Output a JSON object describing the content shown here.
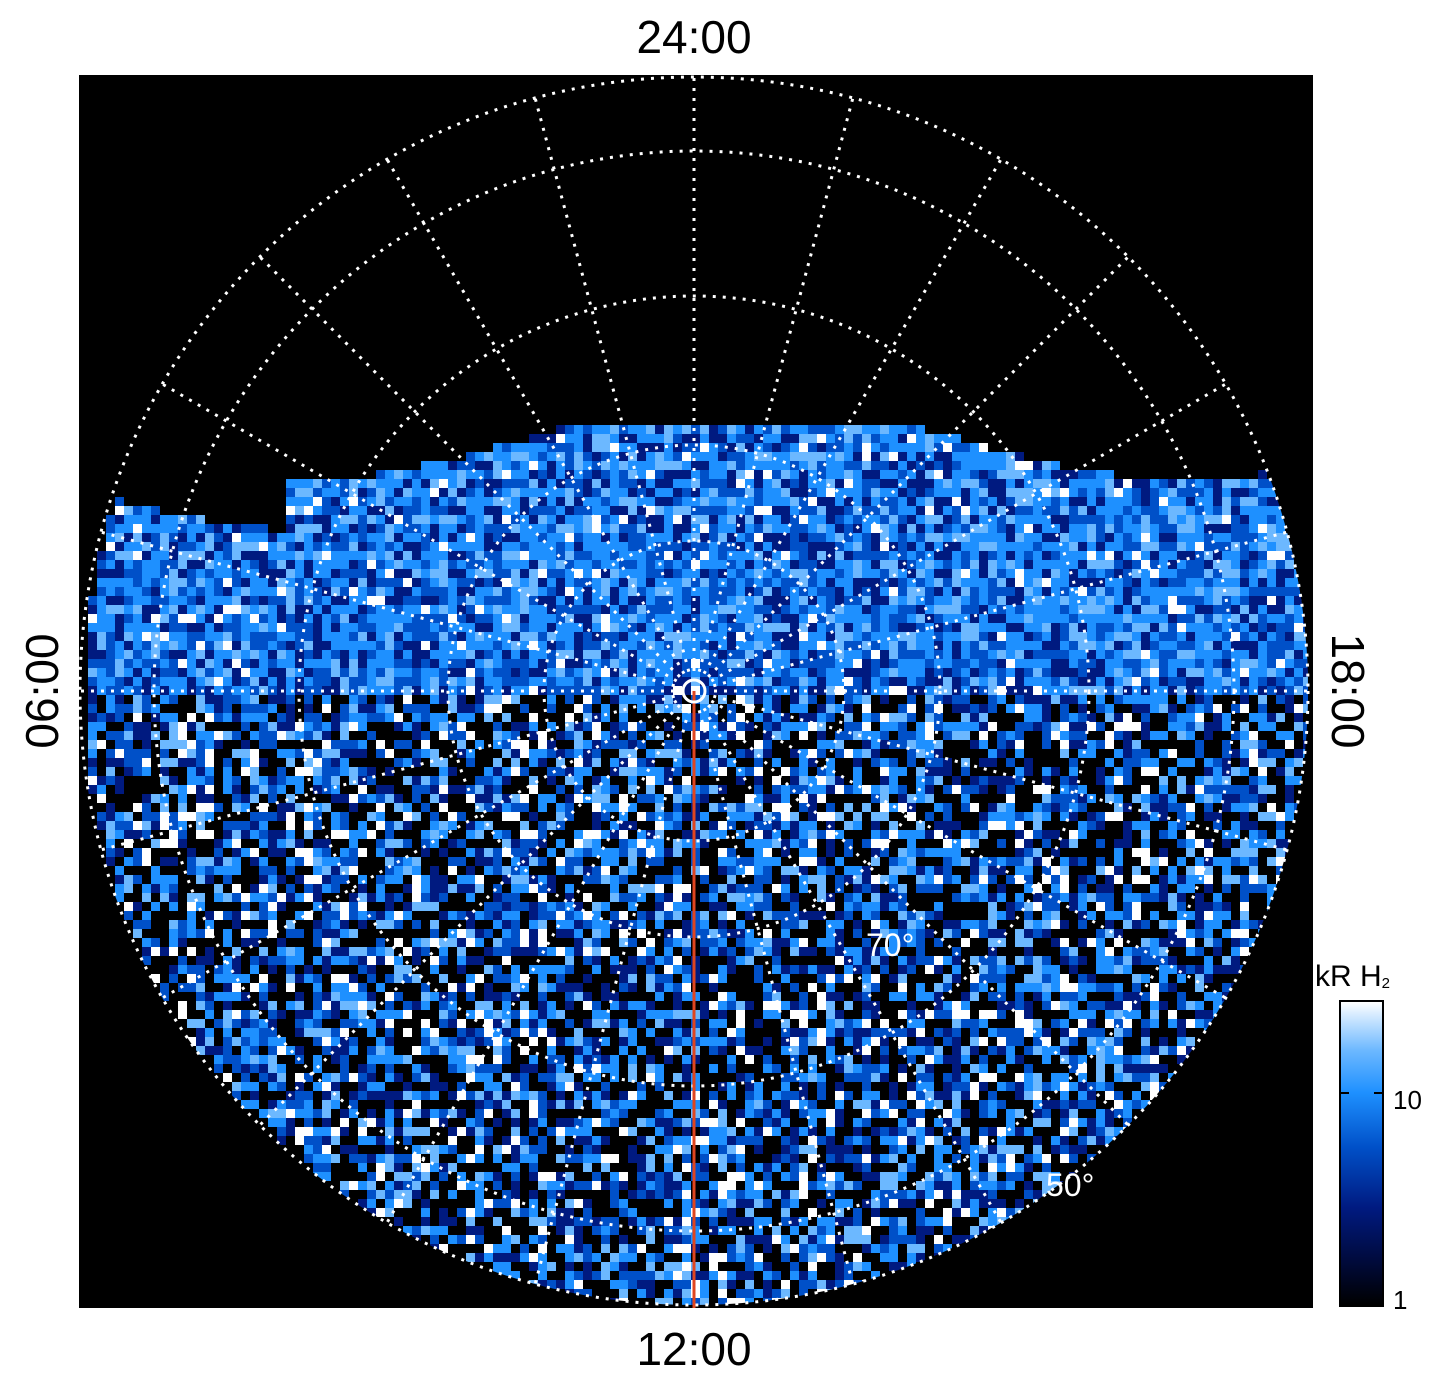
{
  "local_time_labels": {
    "top": "24:00",
    "bottom": "12:00",
    "left": "06:00",
    "right": "18:00"
  },
  "latitude_labels": {
    "inner": "70°",
    "outer": "50°"
  },
  "colorbar": {
    "title": "kR H",
    "title_subscript": "2",
    "ticks": [
      "10",
      "1"
    ],
    "scale": "log",
    "colormap": [
      "#000000",
      "#001a80",
      "#0050c8",
      "#1e90ff",
      "#6cb8ff",
      "#ffffff"
    ]
  },
  "colors": {
    "background": "#000000",
    "grid": "#ffffff",
    "meridian_line": "#e0451f"
  }
}
